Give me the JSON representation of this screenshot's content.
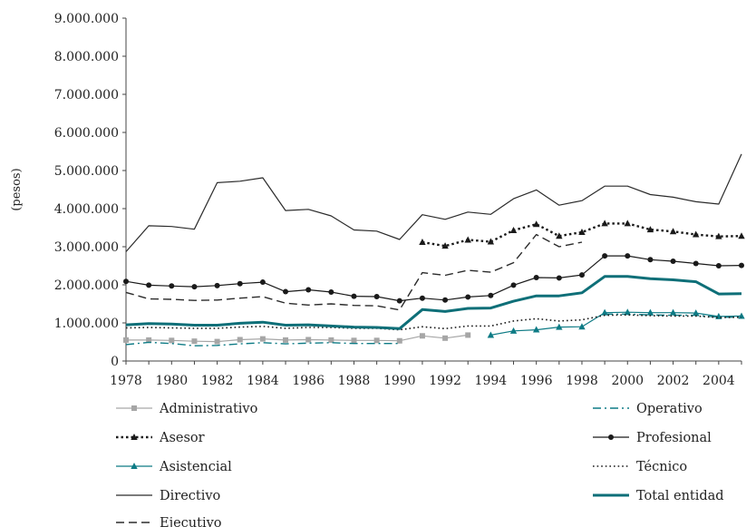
{
  "chart_data": {
    "type": "line",
    "title": "",
    "xlabel": "",
    "ylabel": "(pesos)",
    "ylim": [
      0,
      9000000
    ],
    "y_ticks": [
      0,
      1000000,
      2000000,
      3000000,
      4000000,
      5000000,
      6000000,
      7000000,
      8000000,
      9000000
    ],
    "y_tick_labels": [
      "0",
      "1.000.000",
      "2.000.000",
      "3.000.000",
      "4.000.000",
      "5.000.000",
      "6.000.000",
      "7.000.000",
      "8.000.000",
      "9.000.000"
    ],
    "x_tick_labels": [
      "1978",
      "1980",
      "1982",
      "1984",
      "1986",
      "1988",
      "1990",
      "1992",
      "1994",
      "1996",
      "1998",
      "2000",
      "2002",
      "2004"
    ],
    "grid": false,
    "legend_position": "bottom",
    "x": [
      1978,
      1979,
      1980,
      1981,
      1982,
      1983,
      1984,
      1985,
      1986,
      1987,
      1988,
      1989,
      1990,
      1991,
      1992,
      1993,
      1994,
      1995,
      1996,
      1997,
      1998,
      1999,
      2000,
      2001,
      2002,
      2003,
      2004,
      2005
    ],
    "series": [
      {
        "name": "Administrativo",
        "color": "#a6a6a6",
        "style": "solid",
        "marker": "square",
        "values": [
          550000,
          550000,
          540000,
          520000,
          510000,
          560000,
          580000,
          550000,
          560000,
          550000,
          540000,
          540000,
          530000,
          660000,
          600000,
          680000,
          null,
          null,
          null,
          null,
          null,
          null,
          null,
          null,
          null,
          null,
          null,
          null
        ]
      },
      {
        "name": "Asesor",
        "color": "#1a1a1a",
        "style": "dotted-bold",
        "marker": "triangle",
        "values": [
          null,
          null,
          null,
          null,
          null,
          null,
          null,
          null,
          null,
          null,
          null,
          null,
          null,
          3120000,
          3020000,
          3180000,
          3130000,
          3430000,
          3590000,
          3280000,
          3380000,
          3610000,
          3610000,
          3450000,
          3400000,
          3320000,
          3270000,
          3280000
        ]
      },
      {
        "name": "Asistencial",
        "color": "#0e7b85",
        "style": "solid",
        "marker": "triangle",
        "values": [
          null,
          null,
          null,
          null,
          null,
          null,
          null,
          null,
          null,
          null,
          null,
          null,
          null,
          null,
          null,
          null,
          680000,
          790000,
          820000,
          890000,
          900000,
          1270000,
          1280000,
          1270000,
          1270000,
          1260000,
          1170000,
          1180000
        ]
      },
      {
        "name": "Directivo",
        "color": "#2b2b2b",
        "style": "solid",
        "marker": "none",
        "values": [
          2870000,
          3550000,
          3530000,
          3460000,
          4680000,
          4720000,
          4810000,
          3950000,
          3980000,
          3810000,
          3440000,
          3410000,
          3190000,
          3840000,
          3720000,
          3910000,
          3850000,
          4260000,
          4490000,
          4090000,
          4210000,
          4590000,
          4590000,
          4370000,
          4300000,
          4180000,
          4120000,
          5430000
        ]
      },
      {
        "name": "Ejecutivo",
        "color": "#2b2b2b",
        "style": "dashed",
        "marker": "none",
        "values": [
          1800000,
          1630000,
          1620000,
          1590000,
          1600000,
          1650000,
          1690000,
          1520000,
          1470000,
          1500000,
          1460000,
          1450000,
          1340000,
          2320000,
          2250000,
          2380000,
          2330000,
          2580000,
          3320000,
          3000000,
          3120000,
          null,
          null,
          null,
          null,
          null,
          null,
          null
        ]
      },
      {
        "name": "Operativo",
        "color": "#0e7b85",
        "style": "dashdot",
        "marker": "none",
        "values": [
          430000,
          490000,
          460000,
          400000,
          410000,
          450000,
          480000,
          450000,
          470000,
          480000,
          460000,
          460000,
          460000,
          null,
          null,
          null,
          null,
          null,
          null,
          null,
          null,
          1230000,
          1230000,
          1210000,
          1200000,
          1200000,
          1150000,
          1150000
        ]
      },
      {
        "name": "Profesional",
        "color": "#1a1a1a",
        "style": "solid",
        "marker": "dot",
        "values": [
          2090000,
          1990000,
          1970000,
          1950000,
          1980000,
          2030000,
          2070000,
          1820000,
          1870000,
          1810000,
          1700000,
          1690000,
          1580000,
          1650000,
          1600000,
          1680000,
          1720000,
          1990000,
          2190000,
          2180000,
          2260000,
          2760000,
          2760000,
          2660000,
          2620000,
          2560000,
          2500000,
          2510000
        ]
      },
      {
        "name": "Técnico",
        "color": "#1a1a1a",
        "style": "dotted",
        "marker": "none",
        "values": [
          870000,
          880000,
          870000,
          860000,
          860000,
          890000,
          910000,
          860000,
          880000,
          880000,
          860000,
          860000,
          820000,
          900000,
          850000,
          920000,
          920000,
          1050000,
          1110000,
          1050000,
          1080000,
          1200000,
          1210000,
          1190000,
          1180000,
          1180000,
          1140000,
          1150000
        ]
      },
      {
        "name": "Total entidad",
        "color": "#0e6f78",
        "style": "thick",
        "marker": "none",
        "values": [
          950000,
          980000,
          970000,
          940000,
          940000,
          990000,
          1020000,
          940000,
          950000,
          920000,
          890000,
          880000,
          850000,
          1350000,
          1300000,
          1380000,
          1390000,
          1570000,
          1710000,
          1710000,
          1790000,
          2220000,
          2220000,
          2160000,
          2130000,
          2080000,
          1760000,
          1770000
        ]
      }
    ]
  }
}
